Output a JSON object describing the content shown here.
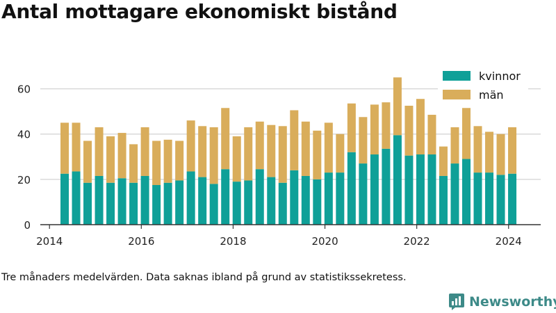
{
  "title": "Antal mottagare ekonomiskt bistånd",
  "note": "Tre månaders medelvärden. Data saknas ibland på grund av statistikssekretess.",
  "brand": "Newsworthy",
  "colors": {
    "kvinnor": "#0fa098",
    "man": "#d9ad5b",
    "grid": "#d9d9d9",
    "axis": "#333333",
    "brand": "#3d8a88"
  },
  "icons": {
    "brand_logo": "bar-chart-chat-bubble-icon"
  },
  "chart_data": {
    "type": "bar",
    "stacked": true,
    "xlim": [
      2013.8,
      2024.7
    ],
    "ylim": [
      0,
      70
    ],
    "x_ticks": [
      2014,
      2016,
      2018,
      2020,
      2022,
      2024
    ],
    "y_ticks": [
      0,
      20,
      40,
      60
    ],
    "grid": true,
    "legend_position": "top-right",
    "x": [
      2014.33,
      2014.58,
      2014.83,
      2015.08,
      2015.33,
      2015.58,
      2015.83,
      2016.08,
      2016.33,
      2016.58,
      2016.83,
      2017.08,
      2017.33,
      2017.58,
      2017.83,
      2018.08,
      2018.33,
      2018.58,
      2018.83,
      2019.08,
      2019.33,
      2019.58,
      2019.83,
      2020.08,
      2020.33,
      2020.58,
      2020.83,
      2021.08,
      2021.33,
      2021.58,
      2021.83,
      2022.08,
      2022.33,
      2022.58,
      2022.83,
      2023.08,
      2023.33,
      2023.58,
      2023.83,
      2024.08
    ],
    "series": [
      {
        "name": "kvinnor",
        "values": [
          22.5,
          23.5,
          18.5,
          21.5,
          18.5,
          20.5,
          18.5,
          21.5,
          17.5,
          18.5,
          19.5,
          23.5,
          21,
          18,
          24.5,
          19,
          19.5,
          24.5,
          21,
          18.5,
          24,
          21.5,
          20,
          23,
          23,
          32,
          27,
          31,
          33.5,
          39.5,
          30.5,
          31,
          31,
          21.5,
          27,
          29,
          23,
          23,
          22,
          22.5
        ]
      },
      {
        "name": "män",
        "values": [
          22.5,
          21.5,
          18.5,
          21.5,
          20.5,
          20,
          17,
          21.5,
          19.5,
          19,
          17.5,
          22.5,
          22.5,
          25,
          27,
          20,
          23.5,
          21,
          23,
          25,
          26.5,
          24,
          21.5,
          22,
          17,
          21.5,
          20.5,
          22,
          20.5,
          25.5,
          22,
          24.5,
          17.5,
          13,
          16,
          22.5,
          20.5,
          18,
          18,
          20.5
        ]
      }
    ]
  }
}
